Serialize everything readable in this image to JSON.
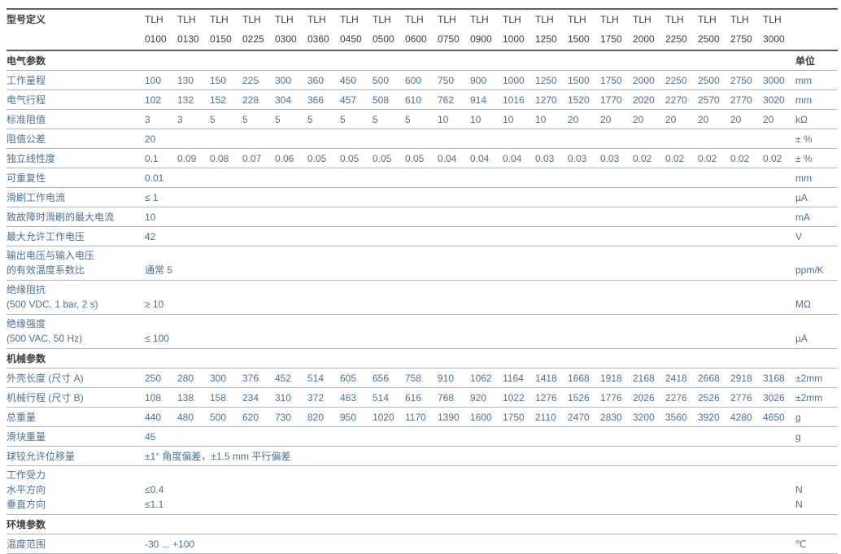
{
  "colors": {
    "data_text": "#4d7192",
    "header_text": "#3a3d3f",
    "row_line": "#b3b7ba",
    "strong_line": "#5c6063"
  },
  "title_row": {
    "label": "型号定义",
    "series": "TLH",
    "models": [
      "0100",
      "0130",
      "0150",
      "0225",
      "0300",
      "0360",
      "0450",
      "0500",
      "0600",
      "0750",
      "0900",
      "1000",
      "1250",
      "1500",
      "1750",
      "2000",
      "2250",
      "2500",
      "2750",
      "3000"
    ]
  },
  "rows": [
    {
      "kind": "section",
      "label": "电气参数",
      "unit": "单位"
    },
    {
      "kind": "data",
      "label": "工作量程",
      "values": [
        "100",
        "130",
        "150",
        "225",
        "300",
        "360",
        "450",
        "500",
        "600",
        "750",
        "900",
        "1000",
        "1250",
        "1500",
        "1750",
        "2000",
        "2250",
        "2500",
        "2750",
        "3000"
      ],
      "unit": "mm"
    },
    {
      "kind": "data",
      "label": "电气行程",
      "values": [
        "102",
        "132",
        "152",
        "228",
        "304",
        "366",
        "457",
        "508",
        "610",
        "762",
        "914",
        "1016",
        "1270",
        "1520",
        "1770",
        "2020",
        "2270",
        "2570",
        "2770",
        "3020"
      ],
      "unit": "mm"
    },
    {
      "kind": "data",
      "label": "标准阻值",
      "values": [
        "3",
        "3",
        "5",
        "5",
        "5",
        "5",
        "5",
        "5",
        "5",
        "10",
        "10",
        "10",
        "10",
        "20",
        "20",
        "20",
        "20",
        "20",
        "20",
        "20"
      ],
      "unit": "kΩ"
    },
    {
      "kind": "span",
      "label": "阻值公差",
      "value": "20",
      "unit": "± %"
    },
    {
      "kind": "data",
      "label": "独立线性度",
      "values": [
        "0.1",
        "0.09",
        "0.08",
        "0.07",
        "0.06",
        "0.05",
        "0.05",
        "0.05",
        "0.05",
        "0.04",
        "0.04",
        "0.04",
        "0.03",
        "0.03",
        "0.03",
        "0.02",
        "0.02",
        "0.02",
        "0.02",
        "0.02"
      ],
      "unit": "± %"
    },
    {
      "kind": "span",
      "label": "可重复性",
      "value": "0.01",
      "unit": "mm"
    },
    {
      "kind": "span",
      "label": "滑刷工作电流",
      "value": "≤ 1",
      "unit": "µA"
    },
    {
      "kind": "span",
      "label": "致故障时滑刷的最大电流",
      "value": "10",
      "unit": "mA"
    },
    {
      "kind": "span",
      "label": "最大允许工作电压",
      "value": "42",
      "unit": "V"
    },
    {
      "kind": "span",
      "label": [
        "输出电压与输入电压",
        "的有效温度系数比"
      ],
      "value": [
        "",
        "通常 5"
      ],
      "unit": [
        "",
        "ppm/K"
      ]
    },
    {
      "kind": "span",
      "label": [
        "绝缘阻抗",
        "(500 VDC, 1 bar, 2 s)"
      ],
      "value": [
        "",
        "≥ 10"
      ],
      "unit": [
        "",
        "MΩ"
      ]
    },
    {
      "kind": "span",
      "label": [
        "绝缘强度",
        "(500 VAC, 50 Hz)"
      ],
      "value": [
        "",
        "≤ 100"
      ],
      "unit": [
        "",
        "µA"
      ]
    },
    {
      "kind": "section",
      "label": "机械参数",
      "unit": ""
    },
    {
      "kind": "data",
      "label": "外壳长度 (尺寸 A)",
      "values": [
        "250",
        "280",
        "300",
        "376",
        "452",
        "514",
        "605",
        "656",
        "758",
        "910",
        "1062",
        "1164",
        "1418",
        "1668",
        "1918",
        "2168",
        "2418",
        "2668",
        "2918",
        "3168"
      ],
      "unit": "±2mm"
    },
    {
      "kind": "data",
      "label": "机械行程 (尺寸 B)",
      "values": [
        "108",
        "138",
        "158",
        "234",
        "310",
        "372",
        "463",
        "514",
        "616",
        "768",
        "920",
        "1022",
        "1276",
        "1526",
        "1776",
        "2026",
        "2276",
        "2526",
        "2776",
        "3026"
      ],
      "unit": "±2mm"
    },
    {
      "kind": "data",
      "label": "总重量",
      "values": [
        "440",
        "480",
        "500",
        "620",
        "730",
        "820",
        "950",
        "1020",
        "1170",
        "1390",
        "1600",
        "1750",
        "2110",
        "2470",
        "2830",
        "3200",
        "3560",
        "3920",
        "4280",
        "4650"
      ],
      "unit": "g"
    },
    {
      "kind": "span",
      "label": "滑块重量",
      "value": "45",
      "unit": "g"
    },
    {
      "kind": "span",
      "label": "球铰允许位移量",
      "value": "±1° 角度偏差，±1.5 mm 平行偏差",
      "unit": ""
    },
    {
      "kind": "span",
      "label": [
        "工作受力",
        "水平方向",
        "垂直方向"
      ],
      "value": [
        "",
        "≤0.4",
        "≤1.1"
      ],
      "unit": [
        "",
        "N",
        "N"
      ]
    },
    {
      "kind": "section",
      "label": "环境参数",
      "unit": ""
    },
    {
      "kind": "span",
      "label": "温度范围",
      "value": "-30 ... +100",
      "unit": "℃"
    }
  ]
}
